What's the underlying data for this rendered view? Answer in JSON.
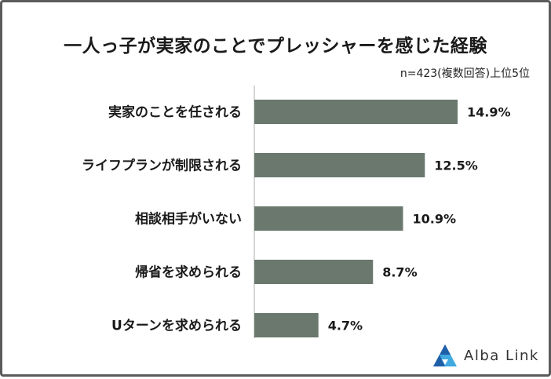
{
  "chart_data": {
    "type": "bar",
    "orientation": "horizontal",
    "title": "一人っ子が実家のことでプレッシャーを感じた経験",
    "subtitle": "n=423(複数回答)上位5位",
    "categories": [
      "実家のことを任される",
      "ライフプランが制限される",
      "相談相手がいない",
      "帰省を求められる",
      "Uターンを求められる"
    ],
    "values": [
      14.9,
      12.5,
      10.9,
      8.7,
      4.7
    ],
    "value_labels": [
      "14.9%",
      "12.5%",
      "10.9%",
      "8.7%",
      "4.7%"
    ],
    "xlim": [
      0,
      14.9
    ],
    "grid": false,
    "bar_color": "#6a786d"
  },
  "brand": {
    "name": "Alba Link",
    "logo_icon": "alba-link-triangle-logo-icon",
    "logo_colors": [
      "#1f5fa8",
      "#3fa9e0"
    ]
  }
}
